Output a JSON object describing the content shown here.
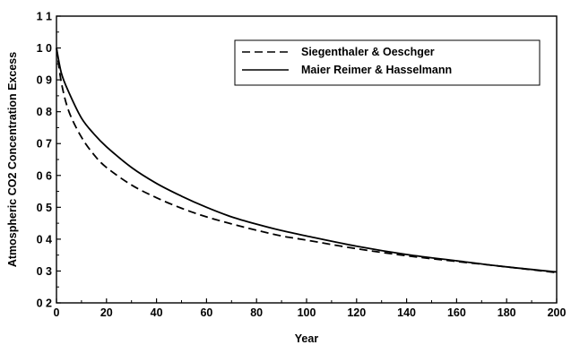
{
  "chart_data": {
    "type": "line",
    "title": "",
    "xlabel": "Year",
    "ylabel": "Atmospheric  CO2  Concentration  Excess",
    "xlim": [
      0,
      200
    ],
    "ylim": [
      0.2,
      1.1
    ],
    "xticks": [
      "0",
      "20",
      "40",
      "60",
      "80",
      "100",
      "120",
      "140",
      "160",
      "180",
      "200"
    ],
    "yticks": [
      "0 2",
      "0 3",
      "0 4",
      "0 5",
      "0 6",
      "0 7",
      "0 8",
      "0 9",
      "1 0",
      "1 1"
    ],
    "grid": false,
    "legend_position": "top-right",
    "series": [
      {
        "name": "Siegenthaler & Oeschger",
        "line_style": "dashed",
        "color": "#000000",
        "x": [
          0,
          2,
          5,
          10,
          15,
          20,
          30,
          40,
          50,
          60,
          70,
          80,
          90,
          100,
          120,
          140,
          160,
          180,
          200
        ],
        "y": [
          1.0,
          0.89,
          0.8,
          0.72,
          0.665,
          0.625,
          0.57,
          0.53,
          0.497,
          0.47,
          0.448,
          0.428,
          0.41,
          0.397,
          0.37,
          0.348,
          0.33,
          0.313,
          0.295
        ]
      },
      {
        "name": "Maier Reimer & Hasselmann",
        "line_style": "solid",
        "color": "#000000",
        "x": [
          0,
          2,
          5,
          10,
          15,
          20,
          30,
          40,
          50,
          60,
          70,
          80,
          90,
          100,
          120,
          140,
          160,
          180,
          200
        ],
        "y": [
          1.0,
          0.92,
          0.86,
          0.78,
          0.73,
          0.69,
          0.625,
          0.575,
          0.535,
          0.5,
          0.47,
          0.447,
          0.427,
          0.41,
          0.378,
          0.352,
          0.332,
          0.313,
          0.297
        ]
      }
    ]
  }
}
